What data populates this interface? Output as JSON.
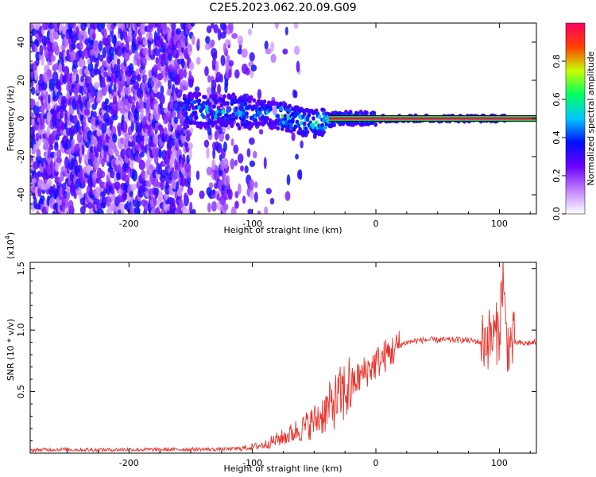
{
  "title": "C2E5.2023.062.20.09.G09",
  "chart_data": [
    {
      "type": "heatmap",
      "name": "spectrogram",
      "xlabel": "Height of straight line (km)",
      "ylabel": "Frequency (Hz)",
      "xlim": [
        -280,
        130
      ],
      "ylim": [
        -50,
        50
      ],
      "xticks": [
        -200,
        -100,
        0,
        100
      ],
      "xtick_labels": [
        "-200",
        "-100",
        "0",
        "100"
      ],
      "yticks": [
        -40,
        -20,
        0,
        20,
        40
      ],
      "ytick_labels": [
        "-40",
        "-20",
        "0",
        "20",
        "40"
      ],
      "signal_band_hz": [
        -1.5,
        1.5
      ],
      "colorbar": {
        "label": "Normalized spectral amplitude",
        "range": [
          0.0,
          1.0
        ],
        "ticks": [
          0.0,
          0.2,
          0.4,
          0.6,
          0.8
        ],
        "tick_labels": [
          "0.0",
          "0.2",
          "0.4",
          "0.6",
          "0.8"
        ],
        "colors": [
          "#ffffff",
          "#c080ff",
          "#6a00ff",
          "#0010ff",
          "#00c8ff",
          "#00ff60",
          "#c8ff00",
          "#ff4000",
          "#ff0060"
        ]
      },
      "ridge": {
        "x": [
          -150,
          -130,
          -110,
          -100,
          -90,
          -80,
          -70,
          -60,
          -50,
          -45,
          -40,
          -30,
          -20,
          -10,
          0,
          20,
          40,
          60,
          80,
          100,
          120,
          130
        ],
        "y": [
          4.5,
          4.0,
          3.5,
          3.0,
          2.5,
          1.5,
          0.5,
          -2.0,
          -3.0,
          -2.0,
          -1.0,
          0.0,
          0.0,
          0.0,
          0.0,
          0.0,
          0.0,
          0.0,
          0.0,
          0.0,
          0.0,
          0.0
        ]
      },
      "grid": false
    },
    {
      "type": "line",
      "name": "snr",
      "xlabel": "Height of straight line (km)",
      "ylabel": "SNR (10 * v/v)",
      "y_multiplier_label": "(x10",
      "y_multiplier_exp": "4",
      "xlim": [
        -280,
        130
      ],
      "ylim": [
        0,
        15500
      ],
      "xticks": [
        -200,
        -100,
        0,
        100
      ],
      "xtick_labels": [
        "-200",
        "-100",
        "0",
        "100"
      ],
      "yticks": [
        5000,
        10000,
        15000
      ],
      "ytick_labels": [
        "0.5",
        "1.0",
        "1.5"
      ],
      "color": "#e8322b",
      "series": [
        {
          "x": [
            -280,
            -260,
            -240,
            -220,
            -200,
            -180,
            -160,
            -140,
            -130,
            -120,
            -110,
            -100,
            -95,
            -90,
            -85,
            -80,
            -75,
            -70,
            -65,
            -60,
            -55,
            -50,
            -45,
            -40,
            -35,
            -30,
            -25,
            -20,
            -15,
            -10,
            -5,
            0,
            5,
            10,
            15,
            20,
            25,
            30,
            40,
            50,
            60,
            70,
            80,
            85,
            90,
            95,
            100,
            103,
            105,
            108,
            110,
            120,
            130
          ],
          "values": [
            250,
            300,
            280,
            270,
            300,
            280,
            300,
            320,
            300,
            330,
            380,
            500,
            600,
            700,
            900,
            1100,
            1300,
            1500,
            1800,
            2000,
            2300,
            2600,
            3000,
            3500,
            4000,
            4500,
            5000,
            5500,
            6000,
            6500,
            6900,
            7300,
            7700,
            8100,
            8400,
            8800,
            9000,
            9100,
            9200,
            9200,
            9200,
            9200,
            9100,
            9000,
            9300,
            9400,
            10000,
            14800,
            9800,
            8500,
            9000,
            8900,
            9000
          ]
        }
      ],
      "grid": false
    }
  ]
}
